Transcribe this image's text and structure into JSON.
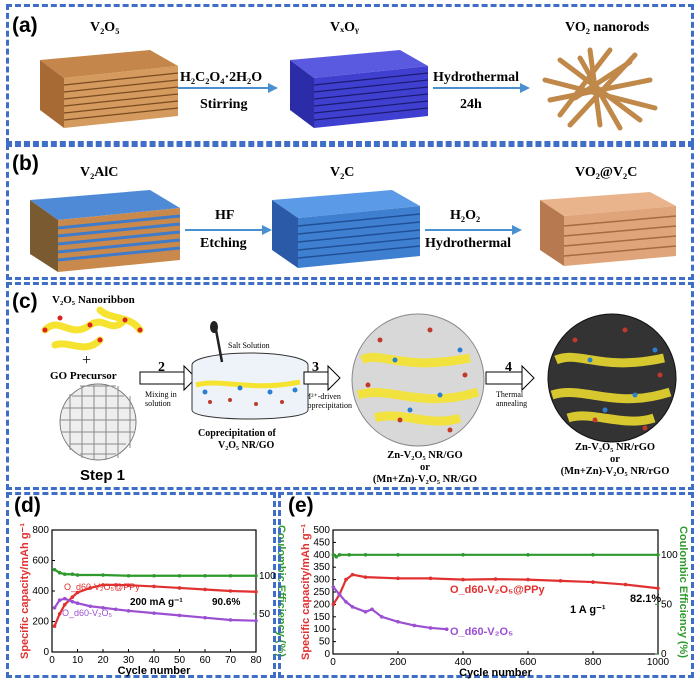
{
  "panel_a": {
    "label": "(a)",
    "start": "V₂O₅",
    "mid": "VₓOᵧ",
    "end": "VO₂ nanorods",
    "arrow1_top": "H₂C₂O₄·2H₂O",
    "arrow1_bottom": "Stirring",
    "arrow2_top": "Hydrothermal",
    "arrow2_bottom": "24h"
  },
  "panel_b": {
    "label": "(b)",
    "start": "V₂AlC",
    "mid": "V₂C",
    "end": "VO₂@V₂C",
    "arrow1_top": "HF",
    "arrow1_bottom": "Etching",
    "arrow2_top": "H₂O₂",
    "arrow2_bottom": "Hydrothermal"
  },
  "panel_c": {
    "label": "(c)",
    "nanoribbon": "V₂O₅ Nanoribbon",
    "plus": "+",
    "go_precursor": "GO Precursor",
    "step1": "Step 1",
    "step2_num": "2",
    "step2_text": "Mixing in solution",
    "salt": "Salt Solution",
    "coprecip": "Coprecipitation    of",
    "coprecip2": "V₂O₅ NR/GO",
    "step3_num": "3",
    "step3_text": "M²⁺-driven coprecipitation",
    "mid_line1": "Zn-V₂O₅ NR/GO",
    "mid_or": "or",
    "mid_line2": "(Mn+Zn)-V₂O₅ NR/GO",
    "step4_num": "4",
    "step4_text": "Thermal annealing",
    "end_line1": "Zn-V₂O₅ NR/rGO",
    "end_or": "or",
    "end_line2": "(Mn+Zn)-V₂O₅ NR/rGO"
  },
  "panel_d": {
    "label": "(d)",
    "annotation_rate": "200 mA g⁻¹",
    "annotation_ret": "90.6%",
    "series1_label": "O_d60-V₂O₅@PPy",
    "series2_label": "O_d60-V₂O₅",
    "ce_tick": "100",
    "ce_tick2": "50"
  },
  "panel_e": {
    "label": "(e)",
    "annotation_rate": "1 A g⁻¹",
    "annotation_ret": "82.1%",
    "series1_label": "O_d60-V₂O₅@PPy",
    "series2_label": "O_d60-V₂O₅"
  },
  "chart_data": [
    {
      "type": "line",
      "xlabel": "Cycle number",
      "ylabel": "Specific capacity/mAh g⁻¹",
      "y2label": "Coulombic Efficiency (%)",
      "xlim": [
        0,
        80
      ],
      "ylim": [
        0,
        800
      ],
      "y2lim": [
        0,
        160
      ],
      "xticks": [
        0,
        10,
        20,
        30,
        40,
        50,
        60,
        70,
        80
      ],
      "yticks": [
        0,
        200,
        400,
        600,
        800
      ],
      "y2ticks": [
        50,
        100
      ],
      "series": [
        {
          "name": "O_d60-V₂O₅@PPy",
          "color": "#e03030",
          "x": [
            1,
            3,
            5,
            8,
            10,
            15,
            20,
            25,
            30,
            40,
            50,
            60,
            70,
            80
          ],
          "y": [
            170,
            250,
            310,
            360,
            390,
            420,
            440,
            440,
            438,
            430,
            420,
            410,
            400,
            395
          ]
        },
        {
          "name": "O_d60-V₂O₅",
          "color": "#9b4fd1",
          "x": [
            1,
            3,
            5,
            8,
            10,
            15,
            20,
            25,
            30,
            40,
            50,
            60,
            70,
            80
          ],
          "y": [
            290,
            340,
            350,
            330,
            320,
            300,
            290,
            280,
            270,
            255,
            240,
            225,
            210,
            205
          ]
        },
        {
          "name": "CE",
          "color": "#2e9a2e",
          "axis": "y2",
          "x": [
            1,
            3,
            5,
            8,
            10,
            20,
            30,
            40,
            50,
            60,
            70,
            80
          ],
          "y": [
            108,
            104,
            102,
            102,
            101,
            101,
            100,
            100,
            100,
            100,
            100,
            100
          ]
        }
      ]
    },
    {
      "type": "line",
      "xlabel": "Cycle number",
      "ylabel": "Specific capacity/mAh g⁻¹",
      "y2label": "Coulombic Efficiency (%)",
      "xlim": [
        0,
        1000
      ],
      "ylim": [
        0,
        500
      ],
      "y2lim": [
        0,
        125
      ],
      "xticks": [
        0,
        200,
        400,
        600,
        800,
        1000
      ],
      "yticks": [
        0,
        50,
        100,
        150,
        200,
        250,
        300,
        350,
        400,
        450,
        500
      ],
      "y2ticks": [
        0,
        50,
        100
      ],
      "series": [
        {
          "name": "O_d60-V₂O₅@PPy",
          "color": "#e03030",
          "x": [
            1,
            20,
            40,
            60,
            100,
            200,
            300,
            400,
            500,
            600,
            700,
            800,
            900,
            1000
          ],
          "y": [
            200,
            240,
            300,
            320,
            310,
            305,
            305,
            300,
            302,
            300,
            295,
            290,
            280,
            265
          ]
        },
        {
          "name": "O_d60-V₂O₅",
          "color": "#9b4fd1",
          "x": [
            1,
            20,
            40,
            60,
            100,
            120,
            150,
            200,
            250,
            300,
            350
          ],
          "y": [
            270,
            240,
            210,
            190,
            170,
            180,
            150,
            130,
            115,
            105,
            100
          ]
        },
        {
          "name": "CE",
          "color": "#2e9a2e",
          "axis": "y2",
          "x": [
            1,
            10,
            20,
            50,
            100,
            200,
            400,
            600,
            800,
            1000
          ],
          "y": [
            100,
            98,
            100,
            100,
            100,
            100,
            100,
            100,
            100,
            100
          ]
        }
      ]
    }
  ]
}
